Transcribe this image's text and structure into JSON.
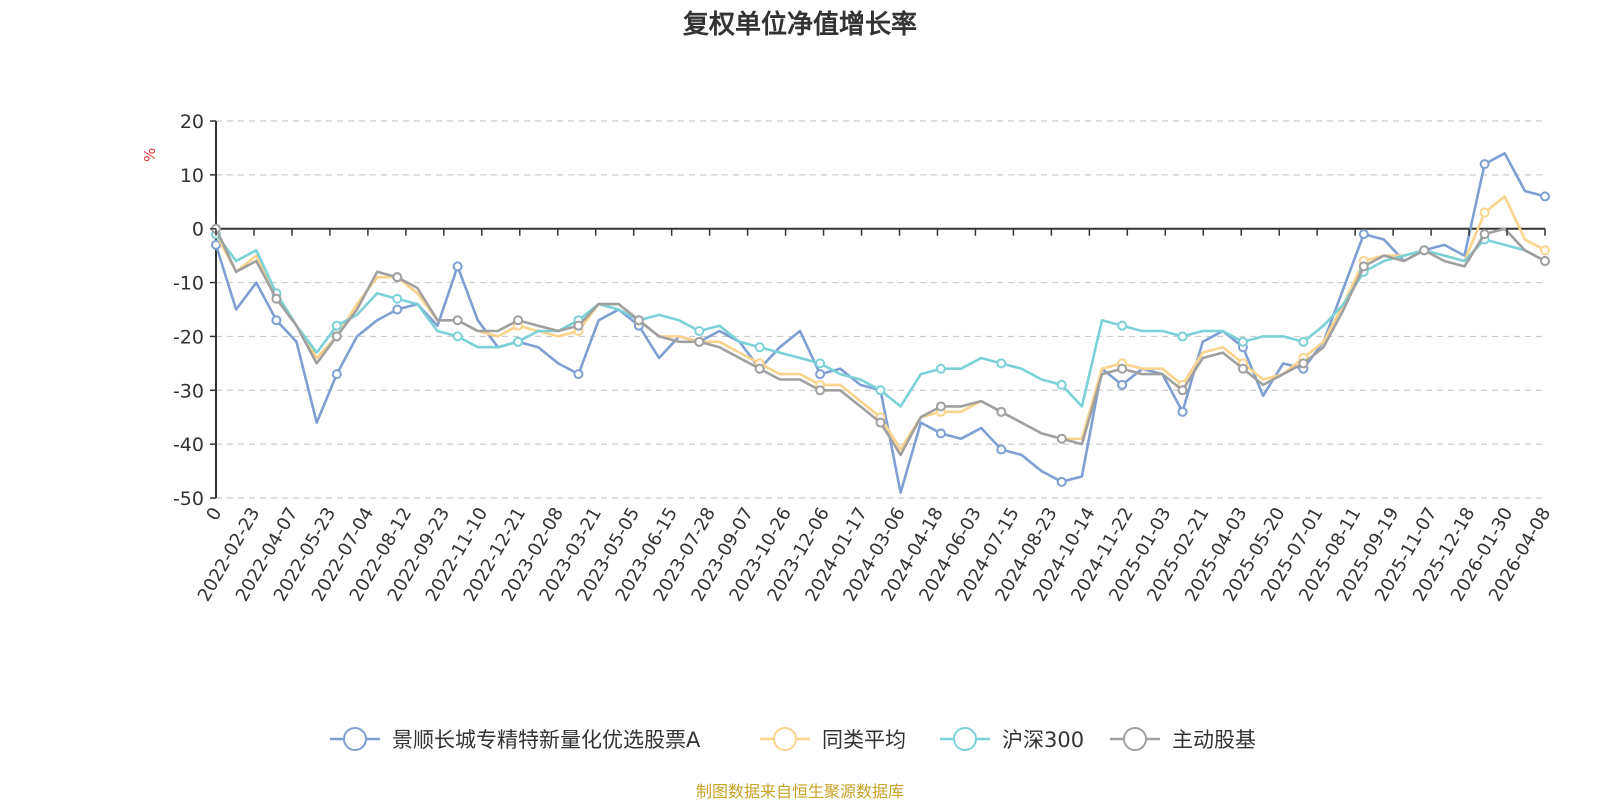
{
  "title": "复权单位净值增长率",
  "source": "制图数据来自恒生聚源数据库",
  "chart_data": {
    "type": "line",
    "title": "复权单位净值增长率",
    "ylabel": "%",
    "ylim": [
      -50,
      20
    ],
    "yticks": [
      20,
      10,
      0,
      -10,
      -20,
      -30,
      -40,
      -50
    ],
    "x_tick_labels": [
      "0",
      "2022-02-23",
      "2022-04-07",
      "2022-05-23",
      "2022-07-04",
      "2022-08-12",
      "2022-09-23",
      "2022-11-10",
      "2022-12-21",
      "2023-02-08",
      "2023-03-21",
      "2023-05-05",
      "2023-06-15",
      "2023-07-28",
      "2023-09-07",
      "2023-10-26",
      "2023-12-06",
      "2024-01-17",
      "2024-03-06",
      "2024-04-18",
      "2024-06-03",
      "2024-07-15",
      "2024-08-23",
      "2024-10-14",
      "2024-11-22",
      "2025-01-03",
      "2025-02-21",
      "2025-04-03",
      "2025-05-20",
      "2025-07-01",
      "2025-08-11",
      "2025-09-19",
      "2025-11-07",
      "2025-12-18",
      "2026-01-30",
      "2026-04-08"
    ],
    "grid": true,
    "legend_position": "bottom",
    "series": [
      {
        "name": "景顺长城专精特新量化优选股票A",
        "color": "#7f9fd3",
        "values": [
          -3,
          -15,
          -10,
          -17,
          -21,
          -36,
          -27,
          -20,
          -17,
          -15,
          -14,
          -18,
          -7,
          -17,
          -22,
          -21,
          -22,
          -25,
          -27,
          -17,
          -15,
          -18,
          -24,
          -20,
          -21,
          -19,
          -21,
          -26,
          -22,
          -19,
          -27,
          -26,
          -29,
          -30,
          -49,
          -36,
          -38,
          -39,
          -37,
          -41,
          -42,
          -45,
          -47,
          -46,
          -26,
          -29,
          -26,
          -27,
          -34,
          -21,
          -19,
          -22,
          -31,
          -25,
          -26,
          -21,
          -11,
          -1,
          -2,
          -6,
          -4,
          -3,
          -5,
          12,
          14,
          7,
          6
        ]
      },
      {
        "name": "同类平均",
        "color": "#fad38c",
        "values": [
          -1,
          -8,
          -5,
          -12,
          -18,
          -24,
          -20,
          -14,
          -9,
          -9,
          -12,
          -17,
          -17,
          -19,
          -20,
          -18,
          -19,
          -20,
          -19,
          -14,
          -14,
          -17,
          -20,
          -20,
          -21,
          -21,
          -23,
          -25,
          -27,
          -27,
          -29,
          -29,
          -32,
          -35,
          -41,
          -35,
          -34,
          -34,
          -32,
          -34,
          -36,
          -38,
          -39,
          -39,
          -26,
          -25,
          -26,
          -26,
          -29,
          -23,
          -22,
          -25,
          -28,
          -27,
          -24,
          -21,
          -14,
          -6,
          -5,
          -5,
          -4,
          -5,
          -6,
          3,
          6,
          -2,
          -4
        ]
      },
      {
        "name": "沪深300",
        "color": "#7dd1d6",
        "values": [
          -1,
          -6,
          -4,
          -12,
          -18,
          -23,
          -18,
          -16,
          -12,
          -13,
          -14,
          -19,
          -20,
          -22,
          -22,
          -21,
          -19,
          -19,
          -17,
          -14,
          -15,
          -17,
          -16,
          -17,
          -19,
          -18,
          -21,
          -22,
          -23,
          -24,
          -25,
          -27,
          -28,
          -30,
          -33,
          -27,
          -26,
          -26,
          -24,
          -25,
          -26,
          -28,
          -29,
          -33,
          -17,
          -18,
          -19,
          -19,
          -20,
          -19,
          -19,
          -21,
          -20,
          -20,
          -21,
          -18,
          -14,
          -8,
          -6,
          -5,
          -4,
          -5,
          -6,
          -2,
          -3,
          -4,
          -6
        ]
      },
      {
        "name": "主动股基",
        "color": "#a0a0a0",
        "values": [
          0,
          -8,
          -6,
          -13,
          -18,
          -25,
          -20,
          -15,
          -8,
          -9,
          -11,
          -17,
          -17,
          -19,
          -19,
          -17,
          -18,
          -19,
          -18,
          -14,
          -14,
          -17,
          -20,
          -21,
          -21,
          -22,
          -24,
          -26,
          -28,
          -28,
          -30,
          -30,
          -33,
          -36,
          -42,
          -35,
          -33,
          -33,
          -32,
          -34,
          -36,
          -38,
          -39,
          -40,
          -27,
          -26,
          -27,
          -27,
          -30,
          -24,
          -23,
          -26,
          -29,
          -27,
          -25,
          -22,
          -15,
          -7,
          -5,
          -6,
          -4,
          -6,
          -7,
          -1,
          0,
          -4,
          -6
        ]
      }
    ]
  }
}
